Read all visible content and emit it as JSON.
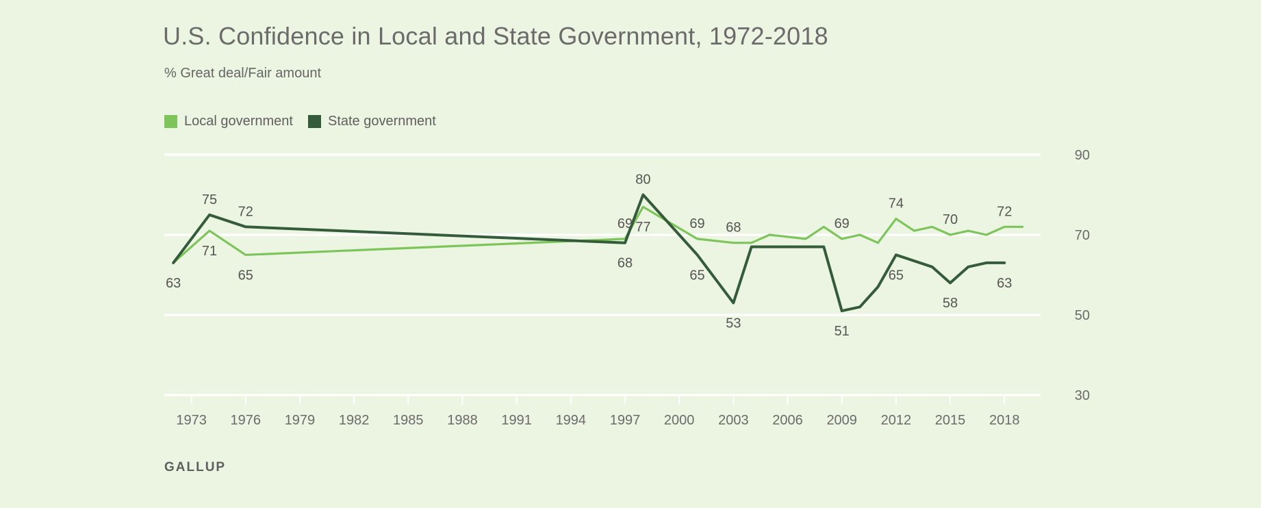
{
  "title": "U.S. Confidence in Local and State Government, 1972-2018",
  "subtitle": "% Great deal/Fair amount",
  "source": "GALLUP",
  "legend": {
    "local": "Local government",
    "state": "State government"
  },
  "colors": {
    "background": "#ecf4e2",
    "local": "#7dc55b",
    "state": "#355c3a",
    "grid": "#ffffff"
  },
  "chart_data": {
    "type": "line",
    "title": "U.S. Confidence in Local and State Government, 1972-2018",
    "subtitle": "% Great deal/Fair amount",
    "xlabel": "",
    "ylabel": "",
    "xlim": [
      1971.5,
      2020
    ],
    "ylim": [
      30,
      90
    ],
    "x_ticks": [
      1973,
      1976,
      1979,
      1982,
      1985,
      1988,
      1991,
      1994,
      1997,
      2000,
      2003,
      2006,
      2009,
      2012,
      2015,
      2018
    ],
    "y_ticks": [
      30,
      50,
      70,
      90
    ],
    "grid": true,
    "legend_position": "top-left",
    "series": [
      {
        "name": "Local government",
        "color": "#7dc55b",
        "x": [
          1972,
          1974,
          1976,
          1997,
          1998,
          2001,
          2003,
          2004,
          2005,
          2006,
          2007,
          2008,
          2009,
          2010,
          2011,
          2012,
          2013,
          2014,
          2015,
          2016,
          2017,
          2018,
          2019
        ],
        "y": [
          63,
          71,
          65,
          69,
          77,
          69,
          68,
          68,
          70,
          69.5,
          69,
          72,
          69,
          70,
          68,
          74,
          71,
          72,
          70,
          71,
          70,
          72,
          72
        ]
      },
      {
        "name": "State government",
        "color": "#355c3a",
        "x": [
          1972,
          1974,
          1976,
          1997,
          1998,
          2001,
          2003,
          2004,
          2008,
          2009,
          2010,
          2011,
          2012,
          2014,
          2015,
          2016,
          2017,
          2018
        ],
        "y": [
          63,
          75,
          72,
          68,
          80,
          65,
          53,
          67,
          67,
          51,
          52,
          57,
          65,
          62,
          58,
          62,
          63,
          63
        ]
      }
    ],
    "data_labels": [
      {
        "series": "State government",
        "x": 1972,
        "text": "63"
      },
      {
        "series": "State government",
        "x": 1974,
        "text": "75"
      },
      {
        "series": "State government",
        "x": 1976,
        "text": "72"
      },
      {
        "series": "Local government",
        "x": 1974,
        "text": "71"
      },
      {
        "series": "Local government",
        "x": 1976,
        "text": "65"
      },
      {
        "series": "Local government",
        "x": 1997,
        "text": "69"
      },
      {
        "series": "State government",
        "x": 1997,
        "text": "68"
      },
      {
        "series": "State government",
        "x": 1998,
        "text": "80"
      },
      {
        "series": "Local government",
        "x": 1998,
        "text": "77"
      },
      {
        "series": "Local government",
        "x": 2001,
        "text": "69"
      },
      {
        "series": "State government",
        "x": 2001,
        "text": "65"
      },
      {
        "series": "Local government",
        "x": 2003,
        "text": "68"
      },
      {
        "series": "State government",
        "x": 2003,
        "text": "53"
      },
      {
        "series": "Local government",
        "x": 2009,
        "text": "69"
      },
      {
        "series": "State government",
        "x": 2009,
        "text": "51"
      },
      {
        "series": "Local government",
        "x": 2012,
        "text": "74"
      },
      {
        "series": "State government",
        "x": 2012,
        "text": "65"
      },
      {
        "series": "Local government",
        "x": 2015,
        "text": "70"
      },
      {
        "series": "State government",
        "x": 2015,
        "text": "58"
      },
      {
        "series": "Local government",
        "x": 2018,
        "text": "72"
      },
      {
        "series": "State government",
        "x": 2018,
        "text": "63"
      }
    ]
  }
}
